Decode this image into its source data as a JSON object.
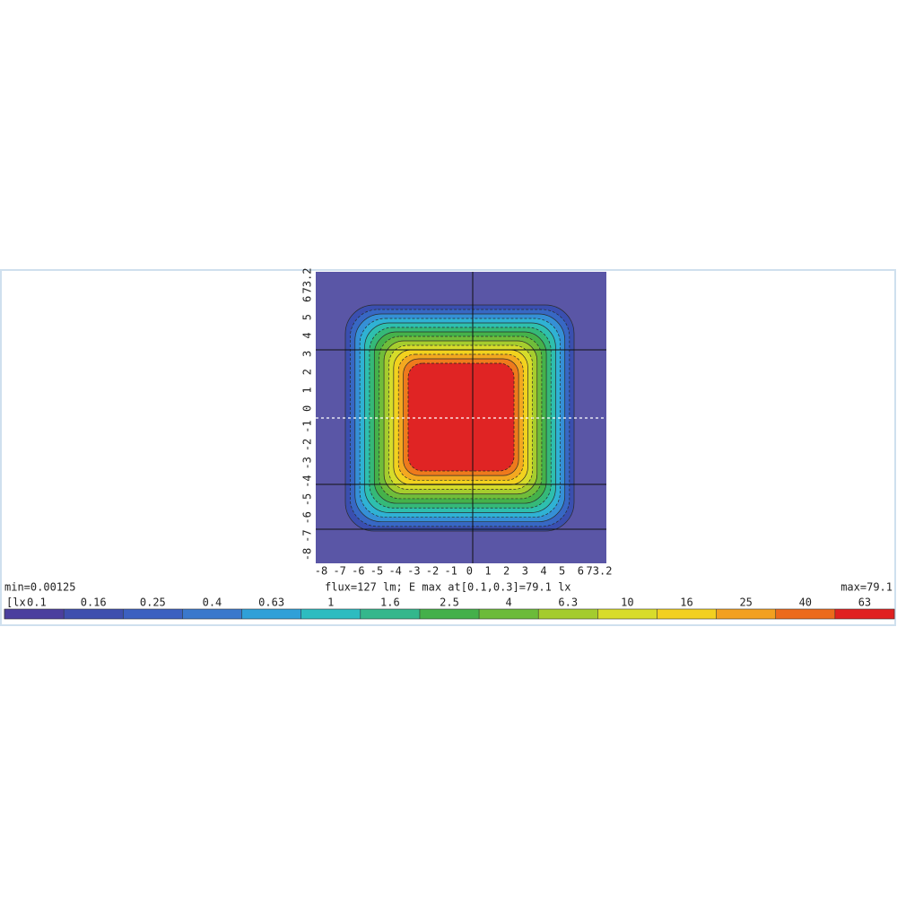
{
  "plot": {
    "x_ticks": [
      "-8",
      "-7",
      "-6",
      "-5",
      "-4",
      "-3",
      "-2",
      "-1",
      "0",
      "1",
      "2",
      "3",
      "4",
      "5",
      "6",
      "73.2"
    ],
    "y_ticks": [
      "-8",
      "-7",
      "-6",
      "-5",
      "-4",
      "-3",
      "-2",
      "-1",
      "0",
      "1",
      "2",
      "3",
      "4",
      "5",
      "6",
      "73.2"
    ],
    "caption": "flux=127 lm; E max at[0.1,0.3]=79.1 lx"
  },
  "legend": {
    "min": "min=0.00125",
    "max": "max=79.1",
    "unit": "[lx",
    "levels": [
      "0.1",
      "0.16",
      "0.25",
      "0.4",
      "0.63",
      "1",
      "1.6",
      "2.5",
      "4",
      "6.3",
      "10",
      "16",
      "25",
      "40",
      "63"
    ]
  }
}
